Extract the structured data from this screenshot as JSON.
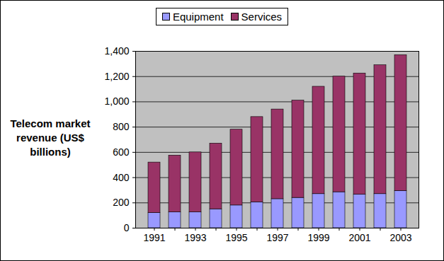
{
  "chart_data": {
    "type": "bar",
    "stacked": true,
    "y_label": "Telecom market revenue (US$ billions)",
    "categories": [
      "1991",
      null,
      "1993",
      null,
      "1995",
      null,
      "1997",
      null,
      "1999",
      null,
      "2001",
      null,
      "2003"
    ],
    "series": [
      {
        "name": "Equipment",
        "color": "#9999ff",
        "values": [
          120,
          125,
          125,
          150,
          180,
          205,
          230,
          240,
          270,
          285,
          265,
          270,
          295
        ]
      },
      {
        "name": "Services",
        "color": "#993366",
        "values": [
          400,
          450,
          475,
          520,
          600,
          675,
          710,
          770,
          850,
          915,
          960,
          1020,
          1075
        ]
      }
    ],
    "ylim": [
      0,
      1400
    ],
    "yticks": [
      0,
      200,
      400,
      600,
      800,
      1000,
      1200,
      1400
    ],
    "grid": true,
    "legend": "top"
  }
}
